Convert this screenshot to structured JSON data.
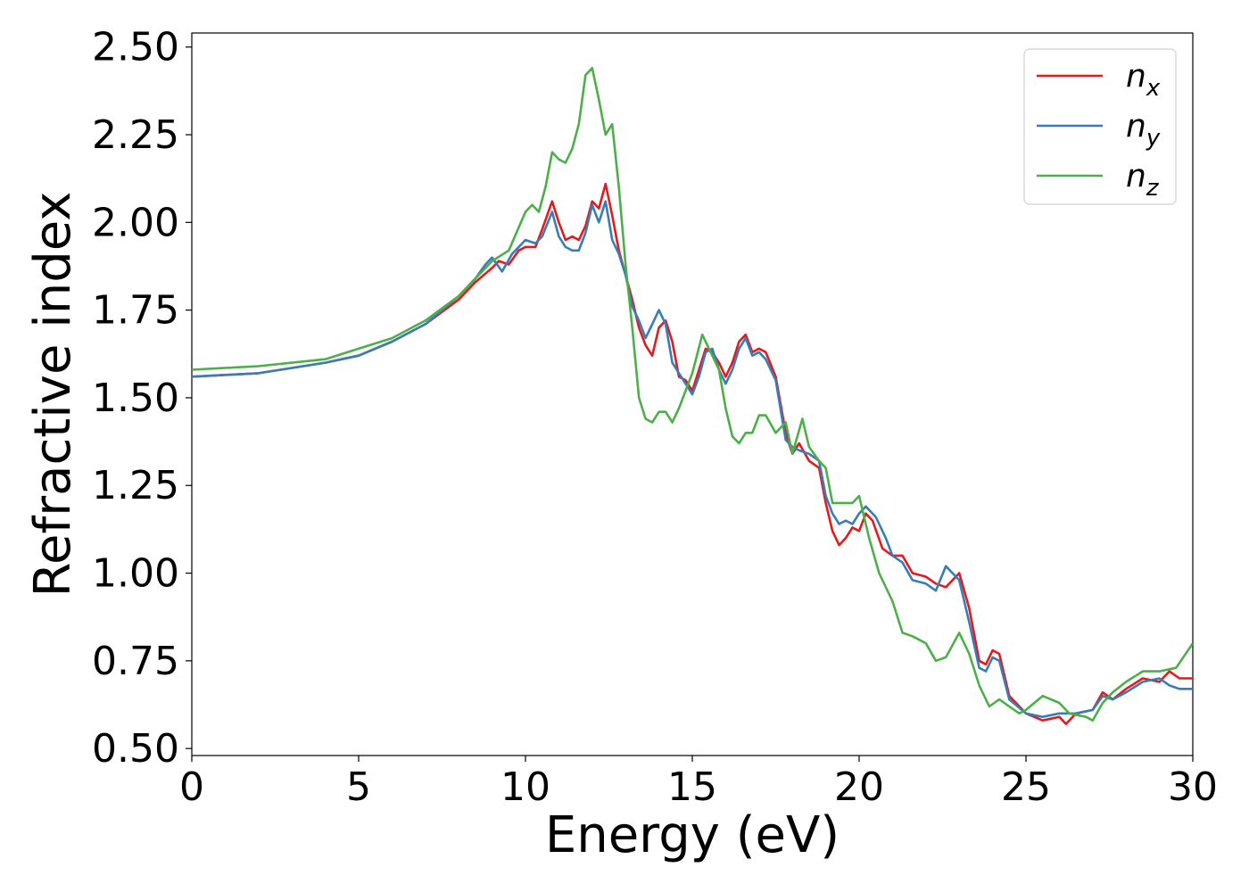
{
  "chart_data": {
    "type": "line",
    "xlabel": "Energy (eV)",
    "ylabel": "Refractive index",
    "xlim": [
      0,
      30
    ],
    "ylim": [
      0.48,
      2.54
    ],
    "xticks": [
      0,
      5,
      10,
      15,
      20,
      25,
      30
    ],
    "xtick_labels": [
      "0",
      "5",
      "10",
      "15",
      "20",
      "25",
      "30"
    ],
    "yticks": [
      0.5,
      0.75,
      1.0,
      1.25,
      1.5,
      1.75,
      2.0,
      2.25,
      2.5
    ],
    "ytick_labels": [
      "0.50",
      "0.75",
      "1.00",
      "1.25",
      "1.50",
      "1.75",
      "2.00",
      "2.25",
      "2.50"
    ],
    "grid": false,
    "legend_position": "top-right",
    "series": [
      {
        "name": "n",
        "subscript": "x",
        "color": "#e41a1c",
        "points": [
          [
            0,
            1.56
          ],
          [
            2,
            1.57
          ],
          [
            4,
            1.6
          ],
          [
            5,
            1.62
          ],
          [
            6,
            1.66
          ],
          [
            7,
            1.71
          ],
          [
            8,
            1.78
          ],
          [
            8.5,
            1.83
          ],
          [
            9,
            1.87
          ],
          [
            9.2,
            1.89
          ],
          [
            9.5,
            1.88
          ],
          [
            9.8,
            1.92
          ],
          [
            10,
            1.93
          ],
          [
            10.3,
            1.93
          ],
          [
            10.5,
            1.98
          ],
          [
            10.8,
            2.06
          ],
          [
            11,
            2.0
          ],
          [
            11.2,
            1.95
          ],
          [
            11.4,
            1.96
          ],
          [
            11.6,
            1.95
          ],
          [
            11.8,
            1.99
          ],
          [
            12,
            2.06
          ],
          [
            12.2,
            2.04
          ],
          [
            12.4,
            2.11
          ],
          [
            12.6,
            2.02
          ],
          [
            12.8,
            1.92
          ],
          [
            13,
            1.85
          ],
          [
            13.2,
            1.78
          ],
          [
            13.4,
            1.7
          ],
          [
            13.6,
            1.65
          ],
          [
            13.8,
            1.62
          ],
          [
            14,
            1.7
          ],
          [
            14.2,
            1.72
          ],
          [
            14.4,
            1.66
          ],
          [
            14.6,
            1.56
          ],
          [
            14.8,
            1.55
          ],
          [
            15,
            1.52
          ],
          [
            15.2,
            1.58
          ],
          [
            15.4,
            1.64
          ],
          [
            15.6,
            1.63
          ],
          [
            15.8,
            1.6
          ],
          [
            16,
            1.56
          ],
          [
            16.2,
            1.6
          ],
          [
            16.4,
            1.66
          ],
          [
            16.6,
            1.68
          ],
          [
            16.8,
            1.63
          ],
          [
            17,
            1.64
          ],
          [
            17.2,
            1.63
          ],
          [
            17.5,
            1.56
          ],
          [
            17.8,
            1.4
          ],
          [
            18,
            1.34
          ],
          [
            18.2,
            1.37
          ],
          [
            18.5,
            1.32
          ],
          [
            18.8,
            1.3
          ],
          [
            19,
            1.2
          ],
          [
            19.2,
            1.12
          ],
          [
            19.4,
            1.08
          ],
          [
            19.6,
            1.1
          ],
          [
            19.8,
            1.13
          ],
          [
            20,
            1.12
          ],
          [
            20.2,
            1.17
          ],
          [
            20.4,
            1.15
          ],
          [
            20.7,
            1.07
          ],
          [
            21,
            1.05
          ],
          [
            21.3,
            1.05
          ],
          [
            21.6,
            1.0
          ],
          [
            22,
            0.99
          ],
          [
            22.3,
            0.97
          ],
          [
            22.6,
            0.96
          ],
          [
            23,
            1.0
          ],
          [
            23.3,
            0.9
          ],
          [
            23.6,
            0.75
          ],
          [
            23.8,
            0.74
          ],
          [
            24,
            0.78
          ],
          [
            24.2,
            0.77
          ],
          [
            24.5,
            0.65
          ],
          [
            25,
            0.6
          ],
          [
            25.5,
            0.58
          ],
          [
            26,
            0.59
          ],
          [
            26.2,
            0.57
          ],
          [
            26.5,
            0.6
          ],
          [
            27,
            0.61
          ],
          [
            27.3,
            0.66
          ],
          [
            27.6,
            0.64
          ],
          [
            28,
            0.67
          ],
          [
            28.5,
            0.7
          ],
          [
            29,
            0.69
          ],
          [
            29.3,
            0.72
          ],
          [
            29.6,
            0.7
          ],
          [
            30,
            0.7
          ]
        ]
      },
      {
        "name": "n",
        "subscript": "y",
        "color": "#377eb8",
        "points": [
          [
            0,
            1.56
          ],
          [
            2,
            1.57
          ],
          [
            4,
            1.6
          ],
          [
            5,
            1.62
          ],
          [
            6,
            1.66
          ],
          [
            7,
            1.71
          ],
          [
            8,
            1.79
          ],
          [
            8.5,
            1.84
          ],
          [
            8.8,
            1.88
          ],
          [
            9,
            1.9
          ],
          [
            9.3,
            1.86
          ],
          [
            9.6,
            1.91
          ],
          [
            10,
            1.95
          ],
          [
            10.3,
            1.94
          ],
          [
            10.5,
            1.96
          ],
          [
            10.8,
            2.03
          ],
          [
            11,
            1.96
          ],
          [
            11.2,
            1.93
          ],
          [
            11.4,
            1.92
          ],
          [
            11.6,
            1.92
          ],
          [
            11.8,
            1.97
          ],
          [
            12,
            2.05
          ],
          [
            12.2,
            2.0
          ],
          [
            12.4,
            2.06
          ],
          [
            12.6,
            1.95
          ],
          [
            12.8,
            1.91
          ],
          [
            13,
            1.85
          ],
          [
            13.2,
            1.76
          ],
          [
            13.4,
            1.72
          ],
          [
            13.6,
            1.67
          ],
          [
            13.8,
            1.71
          ],
          [
            14,
            1.75
          ],
          [
            14.2,
            1.71
          ],
          [
            14.4,
            1.6
          ],
          [
            14.6,
            1.57
          ],
          [
            14.8,
            1.54
          ],
          [
            15,
            1.51
          ],
          [
            15.2,
            1.56
          ],
          [
            15.4,
            1.63
          ],
          [
            15.6,
            1.64
          ],
          [
            15.8,
            1.58
          ],
          [
            16,
            1.54
          ],
          [
            16.2,
            1.58
          ],
          [
            16.4,
            1.64
          ],
          [
            16.6,
            1.67
          ],
          [
            16.8,
            1.62
          ],
          [
            17,
            1.63
          ],
          [
            17.2,
            1.61
          ],
          [
            17.5,
            1.55
          ],
          [
            17.8,
            1.38
          ],
          [
            18,
            1.36
          ],
          [
            18.2,
            1.35
          ],
          [
            18.5,
            1.34
          ],
          [
            18.8,
            1.32
          ],
          [
            19,
            1.22
          ],
          [
            19.2,
            1.17
          ],
          [
            19.4,
            1.14
          ],
          [
            19.6,
            1.15
          ],
          [
            19.8,
            1.14
          ],
          [
            20,
            1.17
          ],
          [
            20.2,
            1.19
          ],
          [
            20.5,
            1.16
          ],
          [
            20.8,
            1.1
          ],
          [
            21,
            1.05
          ],
          [
            21.3,
            1.03
          ],
          [
            21.6,
            0.98
          ],
          [
            22,
            0.97
          ],
          [
            22.3,
            0.95
          ],
          [
            22.6,
            1.02
          ],
          [
            23,
            0.98
          ],
          [
            23.3,
            0.86
          ],
          [
            23.6,
            0.73
          ],
          [
            23.8,
            0.72
          ],
          [
            24,
            0.76
          ],
          [
            24.2,
            0.75
          ],
          [
            24.5,
            0.64
          ],
          [
            25,
            0.6
          ],
          [
            25.5,
            0.59
          ],
          [
            26,
            0.6
          ],
          [
            26.5,
            0.6
          ],
          [
            27,
            0.61
          ],
          [
            27.3,
            0.65
          ],
          [
            27.6,
            0.64
          ],
          [
            28,
            0.66
          ],
          [
            28.5,
            0.69
          ],
          [
            29,
            0.7
          ],
          [
            29.3,
            0.68
          ],
          [
            29.6,
            0.67
          ],
          [
            30,
            0.67
          ]
        ]
      },
      {
        "name": "n",
        "subscript": "z",
        "color": "#4daf4a",
        "points": [
          [
            0,
            1.58
          ],
          [
            2,
            1.59
          ],
          [
            4,
            1.61
          ],
          [
            5,
            1.64
          ],
          [
            6,
            1.67
          ],
          [
            7,
            1.72
          ],
          [
            8,
            1.79
          ],
          [
            8.5,
            1.84
          ],
          [
            9,
            1.89
          ],
          [
            9.5,
            1.92
          ],
          [
            10,
            2.03
          ],
          [
            10.2,
            2.05
          ],
          [
            10.4,
            2.03
          ],
          [
            10.6,
            2.1
          ],
          [
            10.8,
            2.2
          ],
          [
            11,
            2.18
          ],
          [
            11.2,
            2.17
          ],
          [
            11.4,
            2.21
          ],
          [
            11.6,
            2.28
          ],
          [
            11.8,
            2.42
          ],
          [
            12,
            2.44
          ],
          [
            12.2,
            2.35
          ],
          [
            12.4,
            2.25
          ],
          [
            12.6,
            2.28
          ],
          [
            12.8,
            2.1
          ],
          [
            13,
            1.88
          ],
          [
            13.2,
            1.7
          ],
          [
            13.4,
            1.5
          ],
          [
            13.6,
            1.44
          ],
          [
            13.8,
            1.43
          ],
          [
            14,
            1.46
          ],
          [
            14.2,
            1.46
          ],
          [
            14.4,
            1.43
          ],
          [
            14.6,
            1.47
          ],
          [
            14.8,
            1.52
          ],
          [
            15,
            1.57
          ],
          [
            15.3,
            1.68
          ],
          [
            15.6,
            1.62
          ],
          [
            15.8,
            1.58
          ],
          [
            16,
            1.47
          ],
          [
            16.2,
            1.39
          ],
          [
            16.4,
            1.37
          ],
          [
            16.6,
            1.4
          ],
          [
            16.8,
            1.4
          ],
          [
            17,
            1.45
          ],
          [
            17.2,
            1.45
          ],
          [
            17.5,
            1.4
          ],
          [
            17.8,
            1.43
          ],
          [
            18,
            1.34
          ],
          [
            18.3,
            1.44
          ],
          [
            18.5,
            1.36
          ],
          [
            18.8,
            1.32
          ],
          [
            19,
            1.3
          ],
          [
            19.2,
            1.2
          ],
          [
            19.5,
            1.2
          ],
          [
            19.8,
            1.2
          ],
          [
            20,
            1.22
          ],
          [
            20.3,
            1.1
          ],
          [
            20.6,
            1.0
          ],
          [
            21,
            0.92
          ],
          [
            21.3,
            0.83
          ],
          [
            21.6,
            0.82
          ],
          [
            21.8,
            0.81
          ],
          [
            22,
            0.8
          ],
          [
            22.3,
            0.75
          ],
          [
            22.6,
            0.76
          ],
          [
            23,
            0.83
          ],
          [
            23.3,
            0.77
          ],
          [
            23.6,
            0.68
          ],
          [
            23.9,
            0.62
          ],
          [
            24.2,
            0.64
          ],
          [
            24.5,
            0.62
          ],
          [
            24.8,
            0.6
          ],
          [
            25,
            0.61
          ],
          [
            25.5,
            0.65
          ],
          [
            26,
            0.63
          ],
          [
            26.3,
            0.6
          ],
          [
            26.8,
            0.59
          ],
          [
            27,
            0.58
          ],
          [
            27.3,
            0.63
          ],
          [
            27.6,
            0.66
          ],
          [
            28,
            0.69
          ],
          [
            28.5,
            0.72
          ],
          [
            29,
            0.72
          ],
          [
            29.5,
            0.73
          ],
          [
            30,
            0.8
          ]
        ]
      }
    ]
  }
}
